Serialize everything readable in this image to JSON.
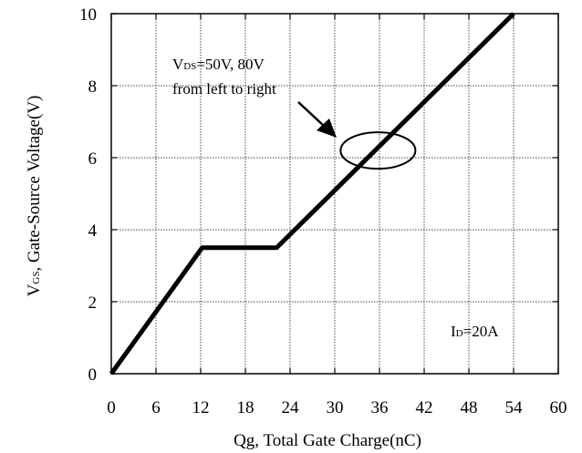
{
  "chart_data": {
    "type": "line",
    "xlabel": "Qg, Total Gate Charge(nC)",
    "ylabel_main": "V",
    "ylabel_sub": "GS",
    "ylabel_rest": ", Gate-Source Voltage(V)",
    "xlim": [
      0,
      60
    ],
    "ylim": [
      0,
      10
    ],
    "xticks": [
      "0",
      "6",
      "12",
      "18",
      "24",
      "30",
      "36",
      "42",
      "48",
      "54",
      "60"
    ],
    "yticks": [
      "0",
      "2",
      "4",
      "6",
      "8",
      "10"
    ],
    "grid": true,
    "series": [
      {
        "x": [
          0,
          12.2,
          22.2,
          54.0
        ],
        "y": [
          0,
          3.5,
          3.5,
          10.0
        ]
      }
    ],
    "annotations": {
      "vds_main": "V",
      "vds_sub": "DS",
      "vds_rest": "=50V, 80V",
      "vds_line2": "from left to right",
      "id_main": "I",
      "id_sub": "D",
      "id_rest": "=20A"
    },
    "ellipse_center": {
      "x": 35.8,
      "y": 6.2
    },
    "line_color": "#000000"
  }
}
